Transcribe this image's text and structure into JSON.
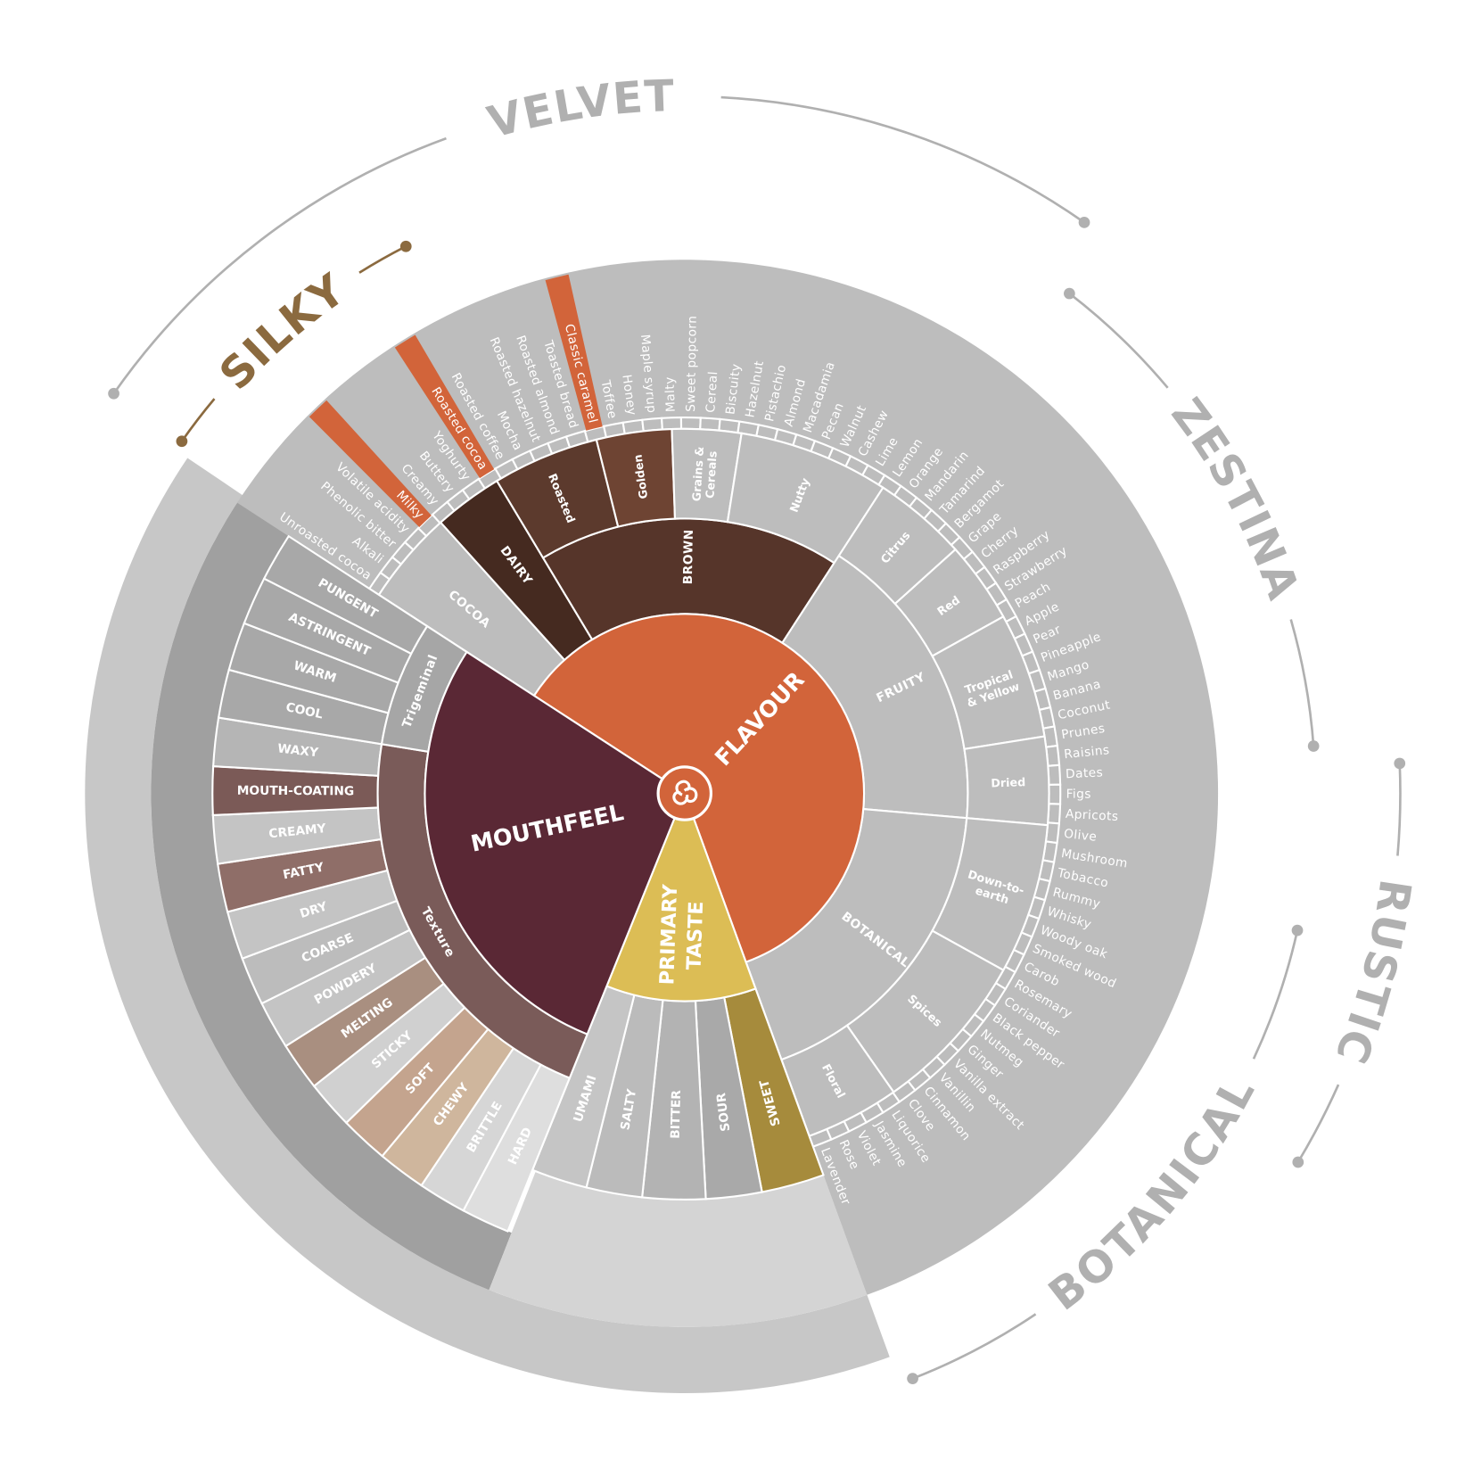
{
  "arcs": {
    "velvet": "VELVET",
    "silky": "SILKY",
    "zestina": "ZESTINA",
    "rustic": "RUSTIC",
    "botanical": "BOTANICAL"
  },
  "core": {
    "flavour": "FLAVOUR",
    "mouthfeel": "MOUTHFEEL",
    "primary_taste": [
      "PRIMARY",
      "TASTE"
    ]
  },
  "flavour_groups": [
    {
      "label": "COCOA",
      "notes": [
        "Unroasted cocoa",
        "Alkali",
        "Phenolic bitter",
        "Volatile acidity"
      ]
    },
    {
      "label": "DAIRY",
      "notes": [
        "Milky",
        "Creamy",
        "Buttery",
        "Yoghurty"
      ]
    },
    {
      "label": "BROWN",
      "subgroups": [
        {
          "label": "Roasted",
          "notes": [
            "Roasted cocoa",
            "Roasted coffee",
            "Mocha",
            "Roasted hazelnut",
            "Roasted almond",
            "Toasted bread"
          ]
        },
        {
          "label": "Golden",
          "notes": [
            "Classic caramel",
            "Toffee",
            "Honey",
            "Maple syrup"
          ]
        },
        {
          "label": "Grains & Cereals",
          "notes": [
            "Malty",
            "Sweet popcorn",
            "Cereal",
            "Biscuity"
          ]
        },
        {
          "label": "Nutty",
          "notes": [
            "Hazelnut",
            "Pistachio",
            "Almond",
            "Macadamia",
            "Pecan",
            "Walnut",
            "Cashew"
          ]
        }
      ]
    },
    {
      "label": "FRUITY",
      "subgroups": [
        {
          "label": "Citrus",
          "notes": [
            "Lime",
            "Lemon",
            "Orange",
            "Mandarin",
            "Tamarind",
            "Bergamot"
          ]
        },
        {
          "label": "Red",
          "notes": [
            "Grape",
            "Cherry",
            "Raspberry",
            "Strawberry"
          ]
        },
        {
          "label": "Tropical & Yellow",
          "notes": [
            "Peach",
            "Apple",
            "Pear",
            "Pineapple",
            "Mango",
            "Banana",
            "Coconut"
          ]
        },
        {
          "label": "Dried",
          "notes": [
            "Prunes",
            "Raisins",
            "Dates",
            "Figs",
            "Apricots"
          ]
        }
      ]
    },
    {
      "label": "BOTANICAL",
      "subgroups": [
        {
          "label": "Down-to-earth",
          "notes": [
            "Olive",
            "Mushroom",
            "Tobacco",
            "Rummy",
            "Whisky",
            "Woody oak",
            "Smoked wood"
          ]
        },
        {
          "label": "Spices",
          "notes": [
            "Carob",
            "Rosemary",
            "Coriander",
            "Black pepper",
            "Nutmeg",
            "Ginger",
            "Vanilla extract",
            "Vanillin",
            "Cinnamon",
            "Clove",
            "Liquorice"
          ]
        },
        {
          "label": "Floral",
          "notes": [
            "Jasmine",
            "Violet",
            "Rose",
            "Lavender"
          ]
        }
      ]
    }
  ],
  "primary_tastes": [
    "SWEET",
    "SOUR",
    "BITTER",
    "SALTY",
    "UMAMI"
  ],
  "mouthfeel_groups": [
    {
      "label": "Texture",
      "notes": [
        "HARD",
        "BRITTLE",
        "CHEWY",
        "SOFT",
        "STICKY",
        "MELTING",
        "POWDERY",
        "COARSE",
        "DRY",
        "FATTY",
        "CREAMY",
        "MOUTH-COATING",
        "WAXY"
      ]
    },
    {
      "label": "Trigeminal",
      "notes": [
        "COOL",
        "WARM",
        "ASTRINGENT",
        "PUNGENT"
      ]
    }
  ]
}
